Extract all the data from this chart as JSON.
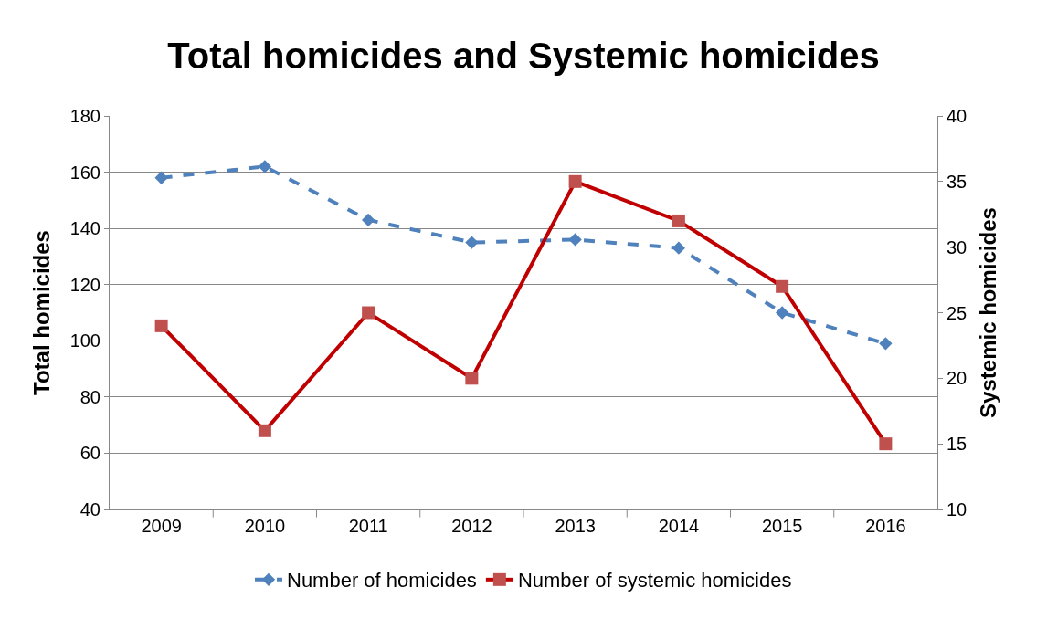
{
  "chart_data": {
    "type": "line",
    "title": "Total homicides and Systemic homicides",
    "ylabel": "Total homicides",
    "y2label": "Systemic homicides",
    "categories": [
      "2009",
      "2010",
      "2011",
      "2012",
      "2013",
      "2014",
      "2015",
      "2016"
    ],
    "series": [
      {
        "name": "Number of homicides",
        "color": "#4f81bd",
        "values": [
          158,
          162,
          143,
          135,
          136,
          133,
          110,
          99
        ],
        "marker": "diamond",
        "line_style": "dashed"
      },
      {
        "name": "Number of systemic homicides",
        "color": "#c00000",
        "values": [
          24,
          16,
          25,
          20,
          35,
          32,
          27,
          15
        ],
        "marker": "square",
        "line_style": "solid",
        "axis": "y2"
      }
    ],
    "ylim": [
      40,
      180
    ],
    "yticks": [
      40,
      60,
      80,
      100,
      120,
      140,
      160,
      180
    ],
    "y2lim": [
      10,
      40
    ],
    "y2ticks": [
      10,
      15,
      20,
      25,
      30,
      35,
      40
    ],
    "grid": "y",
    "legend": "bottom"
  }
}
